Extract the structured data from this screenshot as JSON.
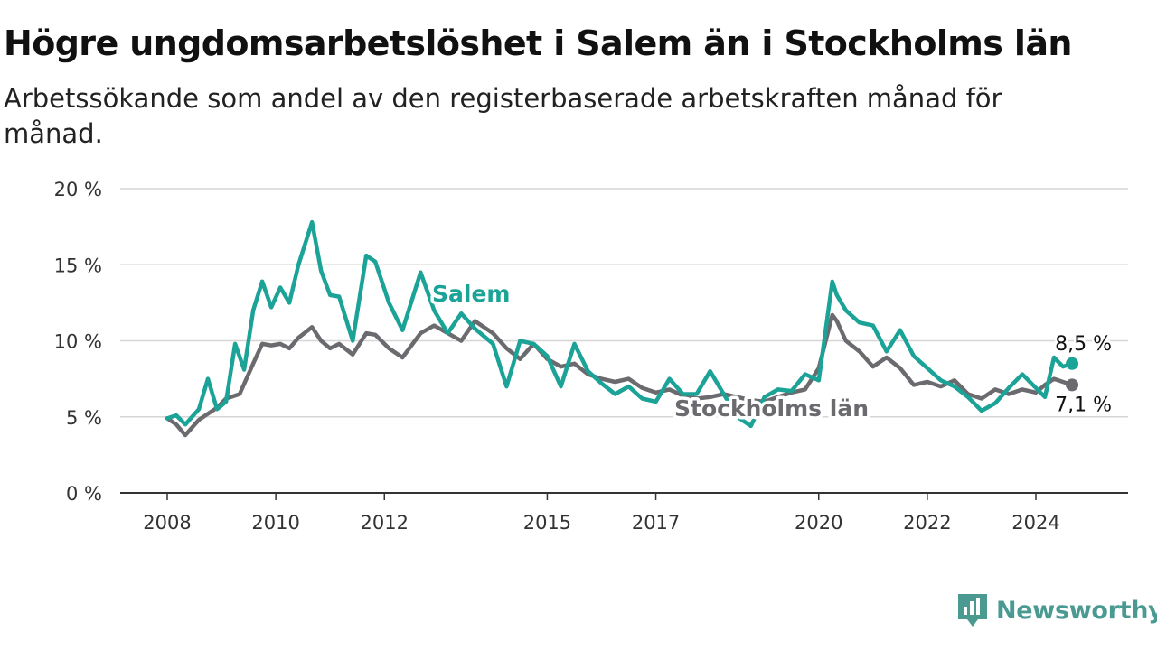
{
  "header": {
    "title": "Högre ungdomsarbetslöshet i Salem än i Stockholms län",
    "subtitle": "Arbetssökande som andel av den registerbaserade arbetskraften månad för månad."
  },
  "brand": {
    "name": "Newsworthy",
    "icon": "newsworthy-chart-icon",
    "color": "#4a9a92"
  },
  "chart_data": {
    "type": "line",
    "title": "Högre ungdomsarbetslöshet i Salem än i Stockholms län",
    "subtitle": "Arbetssökande som andel av den registerbaserade arbetskraften månad för månad.",
    "xlabel": "",
    "ylabel": "",
    "x_range": [
      "2008-01",
      "2024-09"
    ],
    "ylim": [
      0,
      20
    ],
    "y_ticks": [
      0,
      5,
      10,
      15,
      20
    ],
    "y_tick_labels": [
      "0 %",
      "5 %",
      "10 %",
      "15 %",
      "20 %"
    ],
    "x_ticks": [
      2008,
      2010,
      2012,
      2015,
      2017,
      2020,
      2022,
      2024
    ],
    "x_tick_labels": [
      "2008",
      "2010",
      "2012",
      "2015",
      "2017",
      "2020",
      "2022",
      "2024"
    ],
    "grid": "horizontal",
    "legend": "inline labels",
    "end_labels": {
      "salem": "8,5 %",
      "stockholm": "7,1 %"
    },
    "series": [
      {
        "name": "Salem",
        "color": "#1aa396",
        "x": [
          "2008-01",
          "2008-03",
          "2008-05",
          "2008-08",
          "2008-10",
          "2008-12",
          "2009-02",
          "2009-04",
          "2009-06",
          "2009-08",
          "2009-10",
          "2009-12",
          "2010-02",
          "2010-04",
          "2010-06",
          "2010-09",
          "2010-11",
          "2011-01",
          "2011-03",
          "2011-06",
          "2011-09",
          "2011-11",
          "2012-02",
          "2012-05",
          "2012-09",
          "2012-12",
          "2013-03",
          "2013-06",
          "2013-09",
          "2014-01",
          "2014-04",
          "2014-07",
          "2014-10",
          "2015-01",
          "2015-04",
          "2015-07",
          "2015-10",
          "2016-01",
          "2016-04",
          "2016-07",
          "2016-10",
          "2017-01",
          "2017-04",
          "2017-07",
          "2017-10",
          "2018-01",
          "2018-04",
          "2018-07",
          "2018-10",
          "2019-01",
          "2019-04",
          "2019-07",
          "2019-10",
          "2020-01",
          "2020-04",
          "2020-05",
          "2020-07",
          "2020-10",
          "2021-01",
          "2021-04",
          "2021-07",
          "2021-10",
          "2022-01",
          "2022-04",
          "2022-07",
          "2022-10",
          "2023-01",
          "2023-04",
          "2023-07",
          "2023-10",
          "2024-01",
          "2024-03",
          "2024-05",
          "2024-07",
          "2024-09"
        ],
        "values": [
          4.9,
          5.1,
          4.5,
          5.5,
          7.5,
          5.5,
          6,
          9.8,
          8.1,
          12,
          13.9,
          12.2,
          13.5,
          12.5,
          15,
          17.8,
          14.6,
          13,
          12.9,
          10,
          15.6,
          15.2,
          12.5,
          10.7,
          14.5,
          12,
          10.5,
          11.8,
          10.8,
          9.8,
          7,
          10,
          9.8,
          9,
          7,
          9.8,
          8,
          7.2,
          6.5,
          7,
          6.2,
          6,
          7.5,
          6.5,
          6.5,
          8,
          6.5,
          5,
          4.4,
          6.3,
          6.8,
          6.7,
          7.8,
          7.4,
          13.9,
          13,
          12,
          11.2,
          11,
          9.3,
          10.7,
          9,
          8.2,
          7.4,
          7,
          6.3,
          5.4,
          5.9,
          6.9,
          7.8,
          6.9,
          6.3,
          8.9,
          8.3,
          8.5
        ]
      },
      {
        "name": "Stockholms län",
        "color": "#6b6a6f",
        "x": [
          "2008-01",
          "2008-03",
          "2008-05",
          "2008-08",
          "2008-10",
          "2008-12",
          "2009-02",
          "2009-05",
          "2009-08",
          "2009-10",
          "2009-12",
          "2010-02",
          "2010-04",
          "2010-06",
          "2010-09",
          "2010-11",
          "2011-01",
          "2011-03",
          "2011-06",
          "2011-09",
          "2011-11",
          "2012-02",
          "2012-05",
          "2012-09",
          "2012-12",
          "2013-03",
          "2013-06",
          "2013-09",
          "2014-01",
          "2014-04",
          "2014-07",
          "2014-10",
          "2015-01",
          "2015-04",
          "2015-07",
          "2015-10",
          "2016-01",
          "2016-04",
          "2016-07",
          "2016-10",
          "2017-01",
          "2017-04",
          "2017-07",
          "2017-10",
          "2018-01",
          "2018-04",
          "2018-07",
          "2018-10",
          "2019-01",
          "2019-04",
          "2019-07",
          "2019-10",
          "2020-01",
          "2020-04",
          "2020-05",
          "2020-07",
          "2020-10",
          "2021-01",
          "2021-04",
          "2021-07",
          "2021-10",
          "2022-01",
          "2022-04",
          "2022-07",
          "2022-10",
          "2023-01",
          "2023-04",
          "2023-07",
          "2023-10",
          "2024-01",
          "2024-03",
          "2024-05",
          "2024-07",
          "2024-09"
        ],
        "values": [
          4.9,
          4.5,
          3.8,
          4.8,
          5.2,
          5.6,
          6.2,
          6.5,
          8.5,
          9.8,
          9.7,
          9.8,
          9.5,
          10.2,
          10.9,
          10,
          9.5,
          9.8,
          9.1,
          10.5,
          10.4,
          9.5,
          8.9,
          10.5,
          11,
          10.5,
          10,
          11.3,
          10.5,
          9.5,
          8.8,
          9.8,
          8.8,
          8.3,
          8.5,
          7.8,
          7.5,
          7.3,
          7.5,
          6.9,
          6.6,
          6.8,
          6.4,
          6.2,
          6.3,
          6.5,
          6.3,
          6.1,
          6,
          6.3,
          6.6,
          6.8,
          8.2,
          11.7,
          11.3,
          10,
          9.3,
          8.3,
          8.9,
          8.2,
          7.1,
          7.3,
          7,
          7.4,
          6.5,
          6.2,
          6.8,
          6.5,
          6.8,
          6.6,
          7.1,
          7.5,
          7.3,
          7.1
        ]
      }
    ]
  }
}
